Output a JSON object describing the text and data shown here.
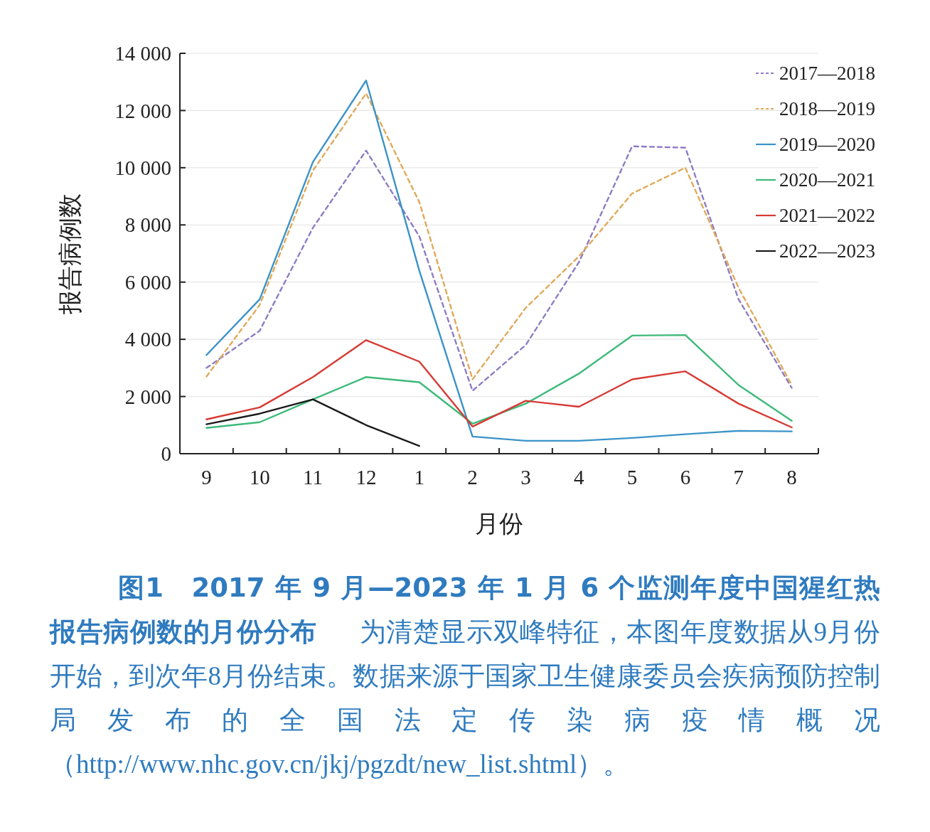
{
  "chart_data": {
    "type": "line",
    "title": "图1　2017 年 9 月—2023 年 1 月 6 个监测年度中国猩红热报告病例数的月份分布",
    "xlabel": "月份",
    "ylabel": "报告病例数",
    "categories": [
      "9",
      "10",
      "11",
      "12",
      "1",
      "2",
      "3",
      "4",
      "5",
      "6",
      "7",
      "8"
    ],
    "series": [
      {
        "name": "2017—2018",
        "color": "#8e7cc3",
        "line_style": "dashed",
        "values": [
          3000,
          4300,
          7900,
          10600,
          7600,
          2200,
          3800,
          6700,
          10750,
          10700,
          5400,
          2300
        ]
      },
      {
        "name": "2018—2019",
        "color": "#e0a95a",
        "line_style": "dashed",
        "values": [
          2700,
          5200,
          9900,
          12600,
          8800,
          2600,
          5100,
          6900,
          9100,
          10000,
          5800,
          2400
        ]
      },
      {
        "name": "2019—2020",
        "color": "#3a93c8",
        "line_style": "solid",
        "values": [
          3450,
          5400,
          10200,
          13050,
          6400,
          600,
          450,
          450,
          550,
          680,
          800,
          780
        ]
      },
      {
        "name": "2020—2021",
        "color": "#3dba7a",
        "line_style": "solid",
        "values": [
          900,
          1100,
          1900,
          2680,
          2500,
          1050,
          1750,
          2800,
          4130,
          4150,
          2400,
          1150
        ]
      },
      {
        "name": "2021—2022",
        "color": "#d63a34",
        "line_style": "solid",
        "values": [
          1200,
          1620,
          2680,
          3970,
          3220,
          950,
          1850,
          1640,
          2600,
          2880,
          1750,
          920
        ]
      },
      {
        "name": "2022—2023",
        "color": "#1a1a1a",
        "line_style": "solid",
        "values": [
          1030,
          1400,
          1900,
          1000,
          270,
          null,
          null,
          null,
          null,
          null,
          null,
          null
        ]
      }
    ],
    "ylim": [
      0,
      14000
    ],
    "yticks": [
      0,
      {
        "value": 2000,
        "label": "2 000"
      },
      {
        "value": 4000,
        "label": "4 000"
      },
      {
        "value": 6000,
        "label": "6 000"
      },
      {
        "value": 8000,
        "label": "8 000"
      },
      {
        "value": 10000,
        "label": "10 000"
      },
      {
        "value": 12000,
        "label": "12 000"
      },
      {
        "value": 14000,
        "label": "14 000"
      }
    ],
    "grid": "y",
    "legend": "top right",
    "annotations": [
      "为清楚显示双峰特征，本图年度数据从9月份开始，到次年8月份结束。数据来源于国家卫生健康委员会疾病预防控制局发布的全国法定传染病疫情概况（http://www.nhc.gov.cn/jkj/pgzdt/new_list.shtml）。"
    ]
  }
}
